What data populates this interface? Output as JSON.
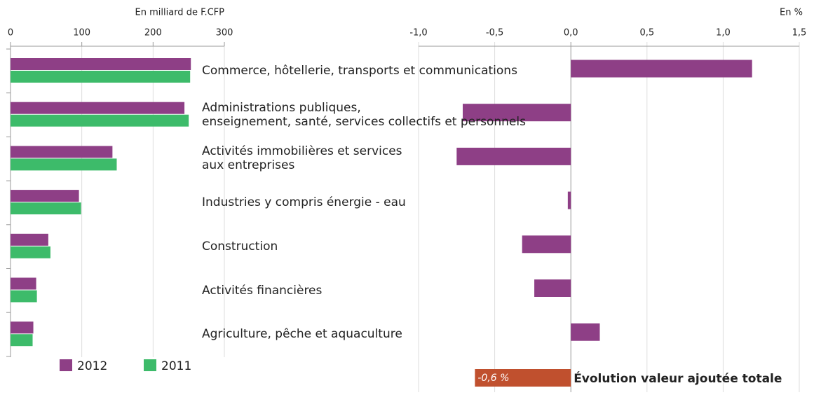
{
  "chart_data": [
    {
      "type": "hbar",
      "xlabel": "En milliard de F.CFP",
      "xlim": [
        0,
        300
      ],
      "xticks": [
        0,
        100,
        200,
        300
      ],
      "series": [
        {
          "name": "2012",
          "color": "#8e3f86",
          "values": [
            253,
            244,
            143,
            96,
            53,
            36,
            32
          ]
        },
        {
          "name": "2011",
          "color": "#3dbb6a",
          "values": [
            252,
            250,
            149,
            99,
            56,
            37,
            31
          ]
        }
      ]
    },
    {
      "type": "hbar",
      "xlabel": "En %",
      "xlim": [
        -1.0,
        1.5
      ],
      "xticks": [
        {
          "value": -1.0,
          "label": "-1,0"
        },
        {
          "value": -0.5,
          "label": "-0,5"
        },
        {
          "value": 0,
          "label": "0,0"
        },
        {
          "value": 0.5,
          "label": "0,5"
        },
        {
          "value": 1.0,
          "label": "1,0"
        },
        {
          "value": 1.5,
          "label": "1,5"
        }
      ],
      "categories": [
        "Commerce, hôtellerie, transports et communications",
        "Administrations publiques,\nenseignement, santé, services collectifs et personnels",
        "Activités immobilières et services\naux entreprises",
        "Industries y compris énergie - eau",
        "Construction",
        "Activités financières",
        "Agriculture, pêche et aquaculture"
      ],
      "color": "#8e3f86",
      "values": [
        1.19,
        -0.71,
        -0.75,
        -0.02,
        -0.32,
        -0.24,
        0.19
      ],
      "total": {
        "label": "Évolution  valeur ajoutée totale",
        "value": -0.63,
        "value_label": "-0,6 %",
        "color": "#c0502e"
      }
    }
  ]
}
